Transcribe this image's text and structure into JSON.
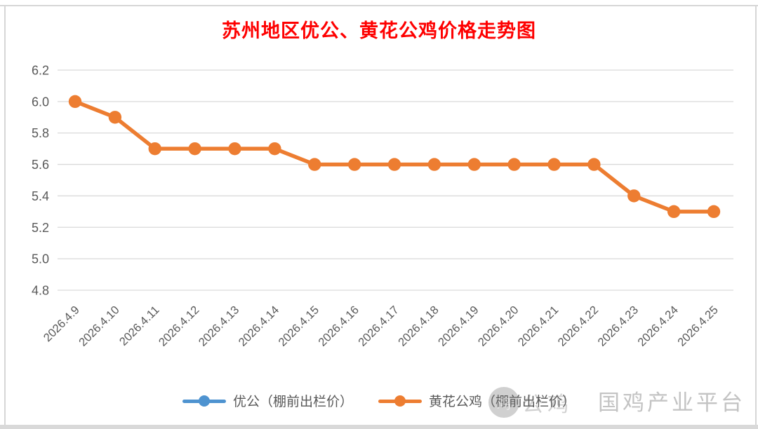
{
  "chart_data": {
    "type": "line",
    "title": "苏州地区优公、黄花公鸡价格走势图",
    "title_color": "#fe0000",
    "categories": [
      "2026.4.9",
      "2026.4.10",
      "2026.4.11",
      "2026.4.12",
      "2026.4.13",
      "2026.4.14",
      "2026.4.15",
      "2026.4.16",
      "2026.4.17",
      "2026.4.18",
      "2026.4.19",
      "2026.4.20",
      "2026.4.21",
      "2026.4.22",
      "2026.4.23",
      "2026.4.24",
      "2026.4.25"
    ],
    "series": [
      {
        "name": "优公（棚前出栏价）",
        "color": "#4e93d0",
        "values": []
      },
      {
        "name": "黄花公鸡（棚前出栏价）",
        "color": "#ed7d31",
        "values": [
          6.0,
          5.9,
          5.7,
          5.7,
          5.7,
          5.7,
          5.6,
          5.6,
          5.6,
          5.6,
          5.6,
          5.6,
          5.6,
          5.6,
          5.4,
          5.3,
          5.3
        ]
      }
    ],
    "y_axis": {
      "min": 4.8,
      "max": 6.2,
      "step": 0.2,
      "tick_labels": [
        "6.2",
        "6.0",
        "5.8",
        "5.6",
        "5.4",
        "5.2",
        "5.0",
        "4.8"
      ]
    },
    "grid": true,
    "legend_position": "bottom",
    "colors": {
      "grid_line": "#d9d9d9",
      "axis_text": "#595959"
    }
  },
  "watermark": {
    "text": "国鸡产业平台",
    "logo_text": "鸡",
    "ghost_text": "公鸡"
  }
}
